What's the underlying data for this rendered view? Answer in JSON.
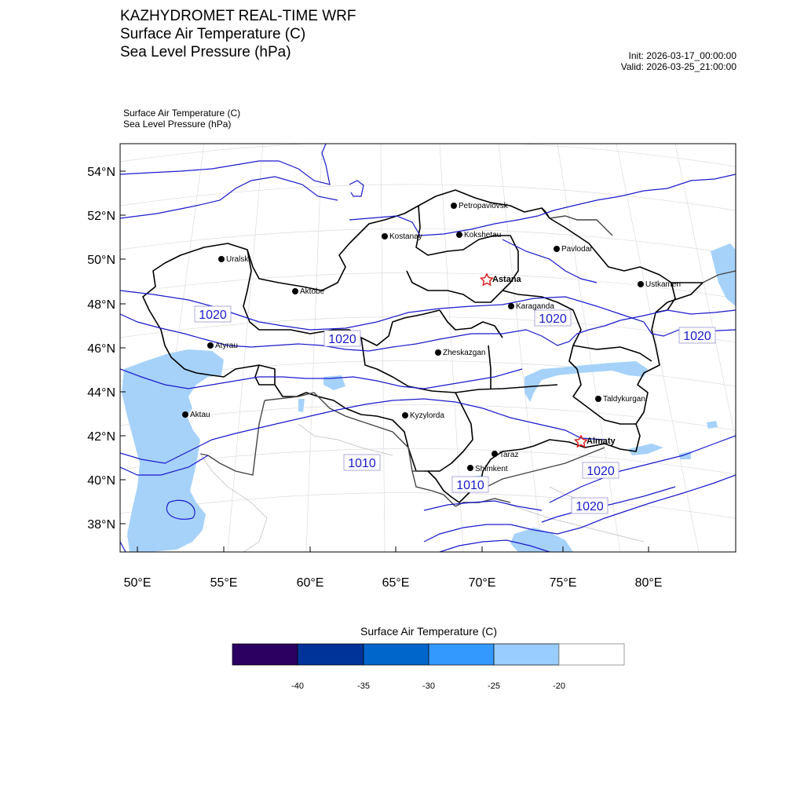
{
  "titles": {
    "line1": "KAZHYDROMET REAL-TIME WRF",
    "line2": "Surface Air Temperature  (C)",
    "line3": "Sea Level Pressure  (hPa)"
  },
  "run": {
    "init": "Init: 2026-03-17_00:00:00",
    "valid": "Valid: 2026-03-25_21:00:00"
  },
  "fields": {
    "temp": "Surface Air Temperature   (C)",
    "slp": "Sea Level Pressure   (hPa)"
  },
  "axes": {
    "lat_ticks": [
      "54°N",
      "52°N",
      "50°N",
      "48°N",
      "46°N",
      "44°N",
      "42°N",
      "40°N",
      "38°N"
    ],
    "lon_ticks": [
      "50°E",
      "55°E",
      "60°E",
      "65°E",
      "70°E",
      "75°E",
      "80°E"
    ]
  },
  "cities": [
    {
      "name": "Petropavlovsk",
      "bold": false
    },
    {
      "name": "Kostanay",
      "bold": false
    },
    {
      "name": "Kokshetau",
      "bold": false
    },
    {
      "name": "Pavlodar",
      "bold": false
    },
    {
      "name": "Uralsk",
      "bold": false
    },
    {
      "name": "Aktobe",
      "bold": false
    },
    {
      "name": "Astana",
      "bold": true,
      "capital": true
    },
    {
      "name": "Ustkamen",
      "bold": false
    },
    {
      "name": "Karaganda",
      "bold": false
    },
    {
      "name": "Atyrau",
      "bold": false
    },
    {
      "name": "Zheskazgan",
      "bold": false
    },
    {
      "name": "Aktau",
      "bold": false
    },
    {
      "name": "Kyzylorda",
      "bold": false
    },
    {
      "name": "Taldykurgan",
      "bold": false
    },
    {
      "name": "Almaty",
      "bold": true,
      "capital": true
    },
    {
      "name": "Taraz",
      "bold": false
    },
    {
      "name": "Shimkent",
      "bold": false
    }
  ],
  "isobar_labels": [
    "1020",
    "1020",
    "1020",
    "1020",
    "1010",
    "1010",
    "1020",
    "1020"
  ],
  "colorbar": {
    "title": "Surface Air Temperature (C)",
    "ticks": [
      "-40",
      "-35",
      "-30",
      "-25",
      "-20"
    ],
    "colors": [
      "#2b0060",
      "#003399",
      "#0066cc",
      "#3399ff",
      "#99ccff",
      "#ffffff"
    ]
  },
  "colors": {
    "isobar": "#1a1acc",
    "border": "#000000",
    "water": "#a6d2fa",
    "capital_marker": "#e02020"
  }
}
